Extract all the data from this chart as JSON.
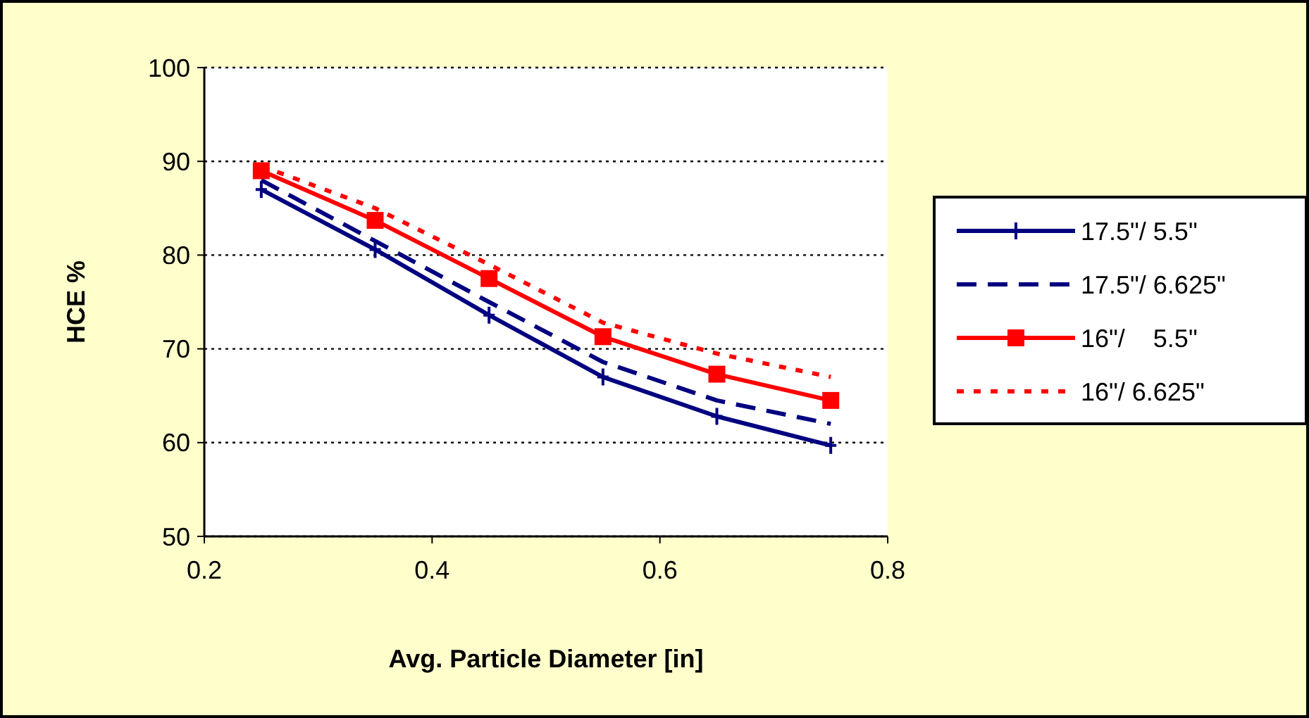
{
  "chart_data": {
    "type": "line",
    "xlabel": "Avg. Particle Diameter [in]",
    "ylabel": "HCE %",
    "x": [
      0.25,
      0.35,
      0.45,
      0.55,
      0.65,
      0.75
    ],
    "xlim": [
      0.2,
      0.8
    ],
    "xticks": [
      {
        "value": 0.2,
        "label": "0.2"
      },
      {
        "value": 0.4,
        "label": "0.4"
      },
      {
        "value": 0.6,
        "label": "0.6"
      },
      {
        "value": 0.8,
        "label": "0.8"
      }
    ],
    "ylim": [
      50,
      100
    ],
    "yticks": [
      50,
      60,
      70,
      80,
      90,
      100
    ],
    "grid": "y",
    "legend": "right",
    "series": [
      {
        "name": "17.5\"/ 5.5\"",
        "color": "#000080",
        "marker": "cross",
        "line_style": "solid",
        "values": [
          87,
          80.6,
          73.6,
          67,
          62.8,
          59.7
        ]
      },
      {
        "name": "17.5\"/ 6.625\"",
        "color": "#000080",
        "marker": "none",
        "line_style": "dashed",
        "values": [
          88,
          81.5,
          75,
          68.6,
          64.5,
          62
        ]
      },
      {
        "name": "16\"/    5.5\"",
        "color": "#ff0000",
        "marker": "square",
        "line_style": "solid",
        "values": [
          89,
          83.7,
          77.5,
          71.3,
          67.3,
          64.5
        ]
      },
      {
        "name": "16\"/ 6.625\"",
        "color": "#ff0000",
        "marker": "none",
        "line_style": "dotted",
        "values": [
          89.5,
          85,
          79,
          72.8,
          69.5,
          67
        ]
      }
    ]
  }
}
